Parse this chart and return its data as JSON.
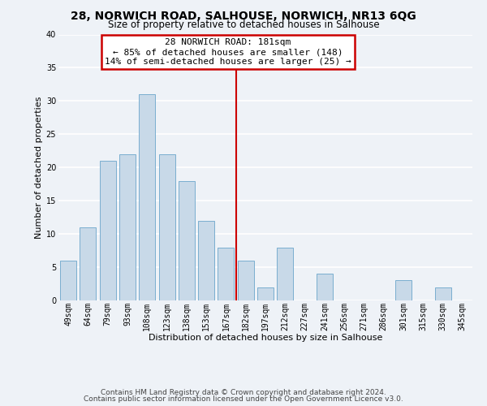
{
  "title": "28, NORWICH ROAD, SALHOUSE, NORWICH, NR13 6QG",
  "subtitle": "Size of property relative to detached houses in Salhouse",
  "xlabel": "Distribution of detached houses by size in Salhouse",
  "ylabel": "Number of detached properties",
  "bins": [
    "49sqm",
    "64sqm",
    "79sqm",
    "93sqm",
    "108sqm",
    "123sqm",
    "138sqm",
    "153sqm",
    "167sqm",
    "182sqm",
    "197sqm",
    "212sqm",
    "227sqm",
    "241sqm",
    "256sqm",
    "271sqm",
    "286sqm",
    "301sqm",
    "315sqm",
    "330sqm",
    "345sqm"
  ],
  "counts": [
    6,
    11,
    21,
    22,
    31,
    22,
    18,
    12,
    8,
    6,
    2,
    8,
    0,
    4,
    0,
    0,
    0,
    3,
    0,
    2,
    0
  ],
  "bar_color": "#c8d9e8",
  "bar_edgecolor": "#7aaed0",
  "highlight_line_color": "#cc0000",
  "highlight_line_index": 9,
  "annotation_line1": "28 NORWICH ROAD: 181sqm",
  "annotation_line2": "← 85% of detached houses are smaller (148)",
  "annotation_line3": "14% of semi-detached houses are larger (25) →",
  "annotation_box_edgecolor": "#cc0000",
  "ylim": [
    0,
    40
  ],
  "yticks": [
    0,
    5,
    10,
    15,
    20,
    25,
    30,
    35,
    40
  ],
  "footer1": "Contains HM Land Registry data © Crown copyright and database right 2024.",
  "footer2": "Contains public sector information licensed under the Open Government Licence v3.0.",
  "background_color": "#eef2f7",
  "grid_color": "#ffffff",
  "title_fontsize": 10,
  "subtitle_fontsize": 8.5,
  "ylabel_fontsize": 8,
  "xlabel_fontsize": 8,
  "tick_fontsize": 7,
  "footer_fontsize": 6.5,
  "annotation_fontsize": 8
}
